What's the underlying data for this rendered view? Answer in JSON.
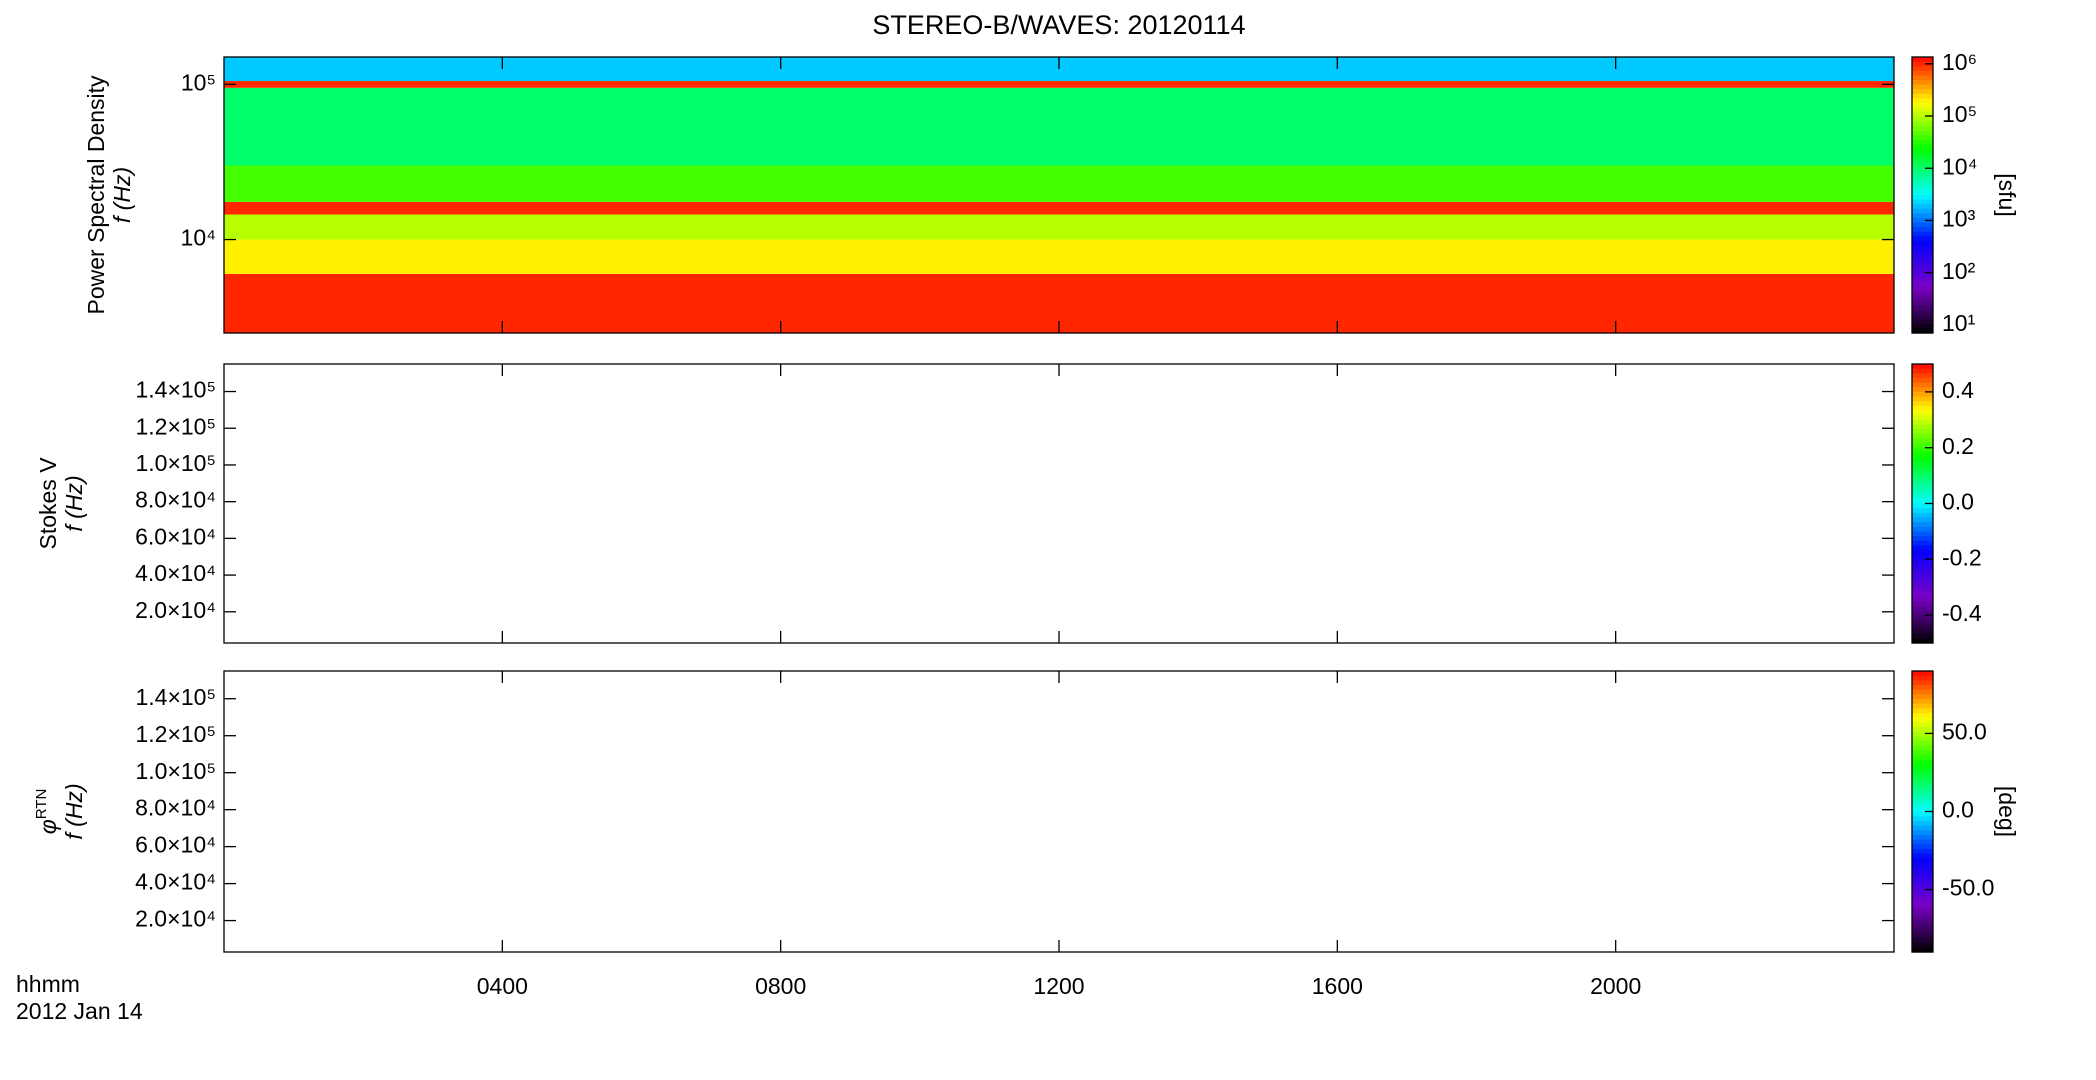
{
  "chart_data": [
    {
      "type": "heatmap",
      "title": "STEREO-B/WAVES: 20120114",
      "ylabel": [
        "Power Spectral Density",
        "f (Hz)"
      ],
      "ylog": true,
      "ylim": [
        2500,
        150000
      ],
      "yticks": [
        {
          "value": 10000,
          "label": "10⁴"
        },
        {
          "value": 100000,
          "label": "10⁵"
        }
      ],
      "xlim": [
        0,
        24
      ],
      "xticks": [
        {
          "value": 4,
          "label": "0400"
        },
        {
          "value": 8,
          "label": "0800"
        },
        {
          "value": 12,
          "label": "1200"
        },
        {
          "value": 16,
          "label": "1600"
        },
        {
          "value": 20,
          "label": "2000"
        }
      ],
      "y_edges": [
        2500,
        6000,
        10000,
        14500,
        17500,
        30000,
        95000,
        105000,
        150000
      ],
      "values": [
        1000000,
        200000,
        100000,
        1000000,
        40000,
        10000,
        1000000,
        2000
      ],
      "clog": true,
      "clim": [
        7,
        1350000
      ],
      "cticks": [
        {
          "value": 10,
          "label": "10¹"
        },
        {
          "value": 100,
          "label": "10²"
        },
        {
          "value": 1000,
          "label": "10³"
        },
        {
          "value": 10000,
          "label": "10⁴"
        },
        {
          "value": 100000,
          "label": "10⁵"
        },
        {
          "value": 1000000,
          "label": "10⁶"
        }
      ],
      "clabel": "[sfu]",
      "colormap": [
        "#000000",
        "#7a00c8",
        "#0000ff",
        "#00ffff",
        "#00ff00",
        "#ffff00",
        "#ff0000"
      ]
    },
    {
      "type": "heatmap",
      "ylabel": [
        "Stokes V",
        "f (Hz)"
      ],
      "ylim": [
        3000,
        155000
      ],
      "yticks": [
        {
          "value": 20000,
          "label": "2.0×10⁴"
        },
        {
          "value": 40000,
          "label": "4.0×10⁴"
        },
        {
          "value": 60000,
          "label": "6.0×10⁴"
        },
        {
          "value": 80000,
          "label": "8.0×10⁴"
        },
        {
          "value": 100000,
          "label": "1.0×10⁵"
        },
        {
          "value": 120000,
          "label": "1.2×10⁵"
        },
        {
          "value": 140000,
          "label": "1.4×10⁵"
        }
      ],
      "xlim": [
        0,
        24
      ],
      "xticks": [
        {
          "value": 4,
          "label": "0400"
        },
        {
          "value": 8,
          "label": "0800"
        },
        {
          "value": 12,
          "label": "1200"
        },
        {
          "value": 16,
          "label": "1600"
        },
        {
          "value": 20,
          "label": "2000"
        }
      ],
      "clim": [
        -0.5,
        0.5
      ],
      "cticks": [
        -0.4,
        -0.2,
        0.0,
        0.2,
        0.4
      ],
      "colormap": [
        "#000000",
        "#7a00c8",
        "#0000ff",
        "#00ffff",
        "#00ff00",
        "#ffff00",
        "#ff0000"
      ]
    },
    {
      "type": "heatmap",
      "ylabel": [
        "φ",
        "f (Hz)"
      ],
      "ylabel_sub": "RTN",
      "ylim": [
        3000,
        155000
      ],
      "yticks": [
        {
          "value": 20000,
          "label": "2.0×10⁴"
        },
        {
          "value": 40000,
          "label": "4.0×10⁴"
        },
        {
          "value": 60000,
          "label": "6.0×10⁴"
        },
        {
          "value": 80000,
          "label": "8.0×10⁴"
        },
        {
          "value": 100000,
          "label": "1.0×10⁵"
        },
        {
          "value": 120000,
          "label": "1.2×10⁵"
        },
        {
          "value": 140000,
          "label": "1.4×10⁵"
        }
      ],
      "xlim": [
        0,
        24
      ],
      "xticks": [
        {
          "value": 4,
          "label": "0400"
        },
        {
          "value": 8,
          "label": "0800"
        },
        {
          "value": 12,
          "label": "1200"
        },
        {
          "value": 16,
          "label": "1600"
        },
        {
          "value": 20,
          "label": "2000"
        }
      ],
      "xlabel": "hhmm",
      "xsublabel": "2012 Jan 14",
      "clim": [
        -90,
        90
      ],
      "cticks": [
        -50,
        0,
        50
      ],
      "clabel": "[deg]",
      "colormap": [
        "#000000",
        "#7a00c8",
        "#0000ff",
        "#00ffff",
        "#00ff00",
        "#ffff00",
        "#ff0000"
      ]
    }
  ]
}
